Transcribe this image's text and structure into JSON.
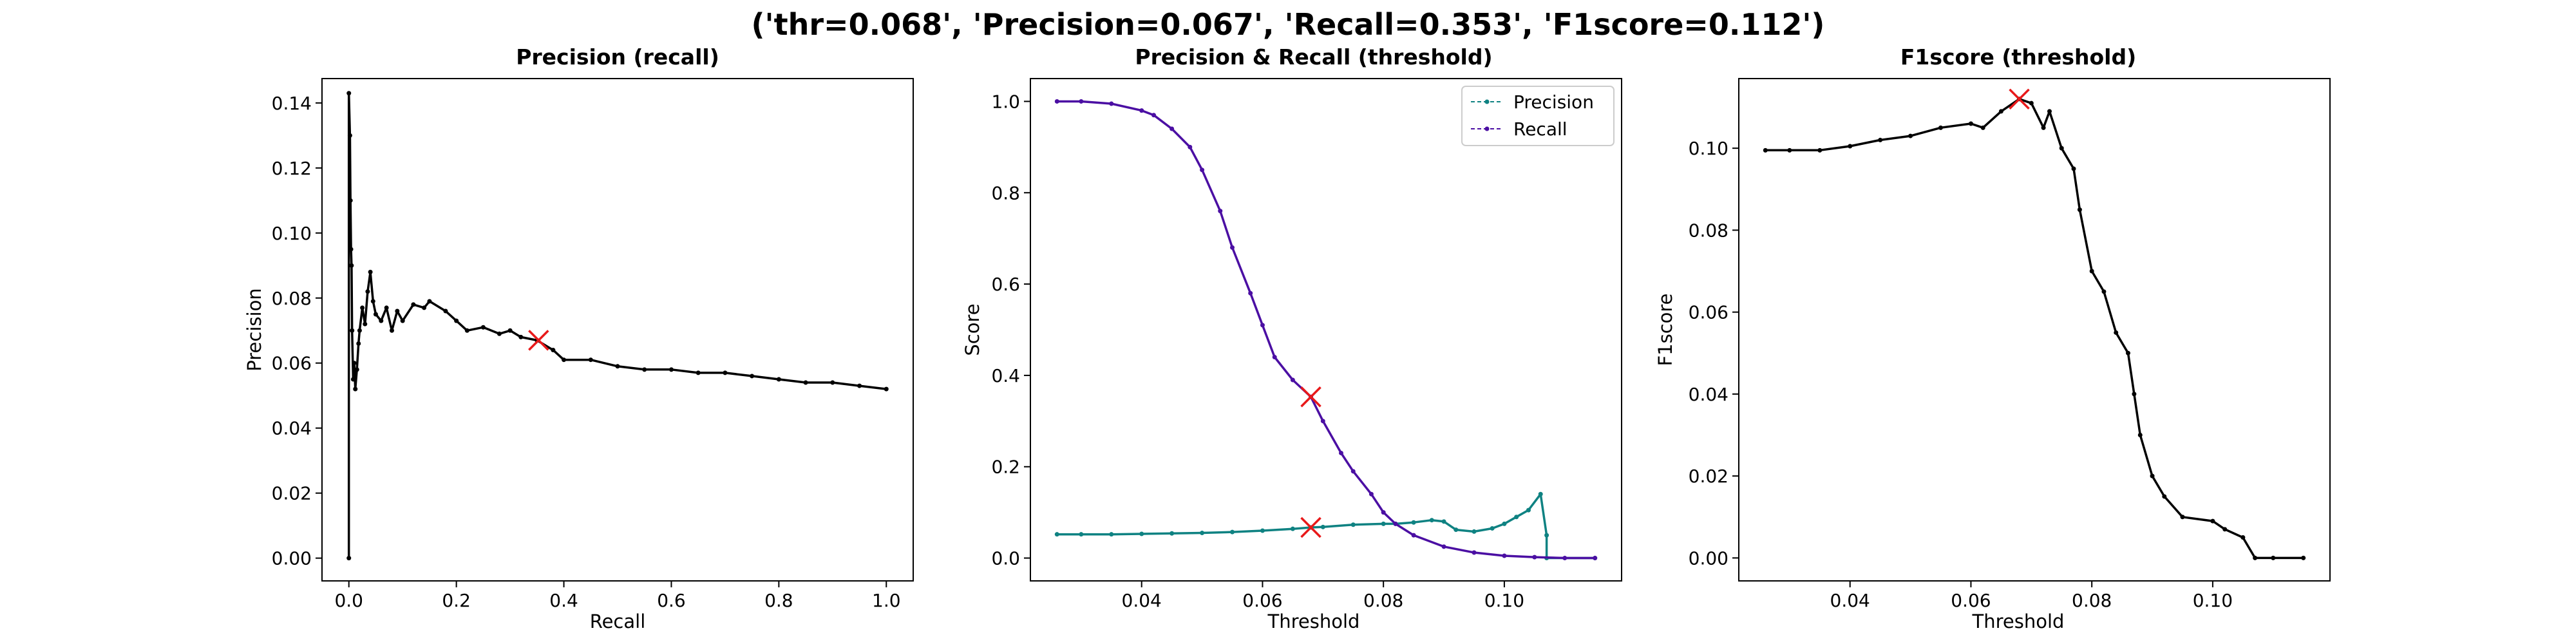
{
  "figure": {
    "suptitle": "('thr=0.068', 'Precision=0.067', 'Recall=0.353', 'F1score=0.112')",
    "background": "#ffffff",
    "marker_color": "#e8191a"
  },
  "chart_data": [
    {
      "type": "line",
      "title": "Precision (recall)",
      "xlabel": "Recall",
      "ylabel": "Precision",
      "xlim": [
        -0.05,
        1.05
      ],
      "ylim": [
        -0.007,
        0.1475
      ],
      "xticks": [
        "0.0",
        "0.2",
        "0.4",
        "0.6",
        "0.8",
        "1.0"
      ],
      "yticks": [
        "0.00",
        "0.02",
        "0.04",
        "0.06",
        "0.08",
        "0.10",
        "0.12",
        "0.14"
      ],
      "grid": false,
      "series": [
        {
          "color": "#000000",
          "points": [
            [
              0.0,
              0.0
            ],
            [
              0.0,
              0.143
            ],
            [
              0.002,
              0.13
            ],
            [
              0.003,
              0.11
            ],
            [
              0.004,
              0.095
            ],
            [
              0.005,
              0.09
            ],
            [
              0.006,
              0.07
            ],
            [
              0.008,
              0.055
            ],
            [
              0.01,
              0.06
            ],
            [
              0.012,
              0.052
            ],
            [
              0.015,
              0.058
            ],
            [
              0.018,
              0.066
            ],
            [
              0.02,
              0.07
            ],
            [
              0.025,
              0.077
            ],
            [
              0.03,
              0.072
            ],
            [
              0.035,
              0.082
            ],
            [
              0.04,
              0.088
            ],
            [
              0.045,
              0.079
            ],
            [
              0.05,
              0.075
            ],
            [
              0.06,
              0.073
            ],
            [
              0.07,
              0.077
            ],
            [
              0.08,
              0.07
            ],
            [
              0.09,
              0.076
            ],
            [
              0.1,
              0.073
            ],
            [
              0.12,
              0.078
            ],
            [
              0.14,
              0.077
            ],
            [
              0.15,
              0.079
            ],
            [
              0.18,
              0.076
            ],
            [
              0.2,
              0.073
            ],
            [
              0.22,
              0.07
            ],
            [
              0.25,
              0.071
            ],
            [
              0.28,
              0.069
            ],
            [
              0.3,
              0.07
            ],
            [
              0.32,
              0.068
            ],
            [
              0.35,
              0.067
            ],
            [
              0.38,
              0.064
            ],
            [
              0.4,
              0.061
            ],
            [
              0.45,
              0.061
            ],
            [
              0.5,
              0.059
            ],
            [
              0.55,
              0.058
            ],
            [
              0.6,
              0.058
            ],
            [
              0.65,
              0.057
            ],
            [
              0.7,
              0.057
            ],
            [
              0.75,
              0.056
            ],
            [
              0.8,
              0.055
            ],
            [
              0.85,
              0.054
            ],
            [
              0.9,
              0.054
            ],
            [
              0.95,
              0.053
            ],
            [
              1.0,
              0.052
            ]
          ]
        }
      ],
      "highlight": {
        "x": 0.353,
        "y": 0.067
      }
    },
    {
      "type": "line",
      "title": "Precision & Recall (threshold)",
      "xlabel": "Threshold",
      "ylabel": "Score",
      "xlim": [
        0.0216,
        0.1194
      ],
      "ylim": [
        -0.05,
        1.05
      ],
      "xticks": [
        "0.04",
        "0.06",
        "0.08",
        "0.10"
      ],
      "yticks": [
        "0.0",
        "0.2",
        "0.4",
        "0.6",
        "0.8",
        "1.0"
      ],
      "grid": false,
      "legend_position": "top-right",
      "series": [
        {
          "name": "Precision",
          "color": "#0f8282",
          "points": [
            [
              0.026,
              0.052
            ],
            [
              0.03,
              0.052
            ],
            [
              0.035,
              0.052
            ],
            [
              0.04,
              0.053
            ],
            [
              0.045,
              0.054
            ],
            [
              0.05,
              0.055
            ],
            [
              0.055,
              0.057
            ],
            [
              0.06,
              0.06
            ],
            [
              0.065,
              0.064
            ],
            [
              0.068,
              0.067
            ],
            [
              0.07,
              0.068
            ],
            [
              0.075,
              0.073
            ],
            [
              0.08,
              0.075
            ],
            [
              0.082,
              0.075
            ],
            [
              0.085,
              0.078
            ],
            [
              0.088,
              0.083
            ],
            [
              0.09,
              0.08
            ],
            [
              0.092,
              0.062
            ],
            [
              0.095,
              0.058
            ],
            [
              0.098,
              0.065
            ],
            [
              0.1,
              0.075
            ],
            [
              0.102,
              0.09
            ],
            [
              0.104,
              0.105
            ],
            [
              0.106,
              0.14
            ],
            [
              0.107,
              0.05
            ],
            [
              0.107,
              0.0
            ],
            [
              0.115,
              0.0
            ]
          ]
        },
        {
          "name": "Recall",
          "color": "#4b0fa3",
          "points": [
            [
              0.026,
              1.0
            ],
            [
              0.03,
              1.0
            ],
            [
              0.035,
              0.995
            ],
            [
              0.04,
              0.98
            ],
            [
              0.042,
              0.97
            ],
            [
              0.045,
              0.94
            ],
            [
              0.048,
              0.9
            ],
            [
              0.05,
              0.85
            ],
            [
              0.053,
              0.76
            ],
            [
              0.055,
              0.68
            ],
            [
              0.058,
              0.58
            ],
            [
              0.06,
              0.51
            ],
            [
              0.062,
              0.44
            ],
            [
              0.065,
              0.39
            ],
            [
              0.068,
              0.353
            ],
            [
              0.07,
              0.3
            ],
            [
              0.073,
              0.23
            ],
            [
              0.075,
              0.19
            ],
            [
              0.078,
              0.14
            ],
            [
              0.08,
              0.1
            ],
            [
              0.082,
              0.075
            ],
            [
              0.085,
              0.05
            ],
            [
              0.09,
              0.025
            ],
            [
              0.095,
              0.012
            ],
            [
              0.1,
              0.005
            ],
            [
              0.105,
              0.002
            ],
            [
              0.11,
              0.0
            ],
            [
              0.115,
              0.0
            ]
          ]
        }
      ],
      "highlights": [
        {
          "x": 0.068,
          "y": 0.353
        },
        {
          "x": 0.068,
          "y": 0.067
        }
      ]
    },
    {
      "type": "line",
      "title": "F1score (threshold)",
      "xlabel": "Threshold",
      "ylabel": "F1score",
      "xlim": [
        0.0216,
        0.1194
      ],
      "ylim": [
        -0.0056,
        0.117
      ],
      "xticks": [
        "0.04",
        "0.06",
        "0.08",
        "0.10"
      ],
      "yticks": [
        "0.00",
        "0.02",
        "0.04",
        "0.06",
        "0.08",
        "0.10"
      ],
      "grid": false,
      "series": [
        {
          "color": "#000000",
          "points": [
            [
              0.026,
              0.0995
            ],
            [
              0.03,
              0.0995
            ],
            [
              0.035,
              0.0995
            ],
            [
              0.04,
              0.1005
            ],
            [
              0.045,
              0.102
            ],
            [
              0.05,
              0.103
            ],
            [
              0.055,
              0.105
            ],
            [
              0.06,
              0.106
            ],
            [
              0.062,
              0.105
            ],
            [
              0.065,
              0.109
            ],
            [
              0.068,
              0.112
            ],
            [
              0.07,
              0.111
            ],
            [
              0.072,
              0.105
            ],
            [
              0.073,
              0.109
            ],
            [
              0.075,
              0.1
            ],
            [
              0.077,
              0.095
            ],
            [
              0.078,
              0.085
            ],
            [
              0.08,
              0.07
            ],
            [
              0.082,
              0.065
            ],
            [
              0.084,
              0.055
            ],
            [
              0.086,
              0.05
            ],
            [
              0.087,
              0.04
            ],
            [
              0.088,
              0.03
            ],
            [
              0.09,
              0.02
            ],
            [
              0.092,
              0.015
            ],
            [
              0.095,
              0.01
            ],
            [
              0.1,
              0.009
            ],
            [
              0.102,
              0.007
            ],
            [
              0.105,
              0.005
            ],
            [
              0.107,
              0.0
            ],
            [
              0.11,
              0.0
            ],
            [
              0.115,
              0.0
            ]
          ]
        }
      ],
      "highlight": {
        "x": 0.068,
        "y": 0.112
      }
    }
  ]
}
